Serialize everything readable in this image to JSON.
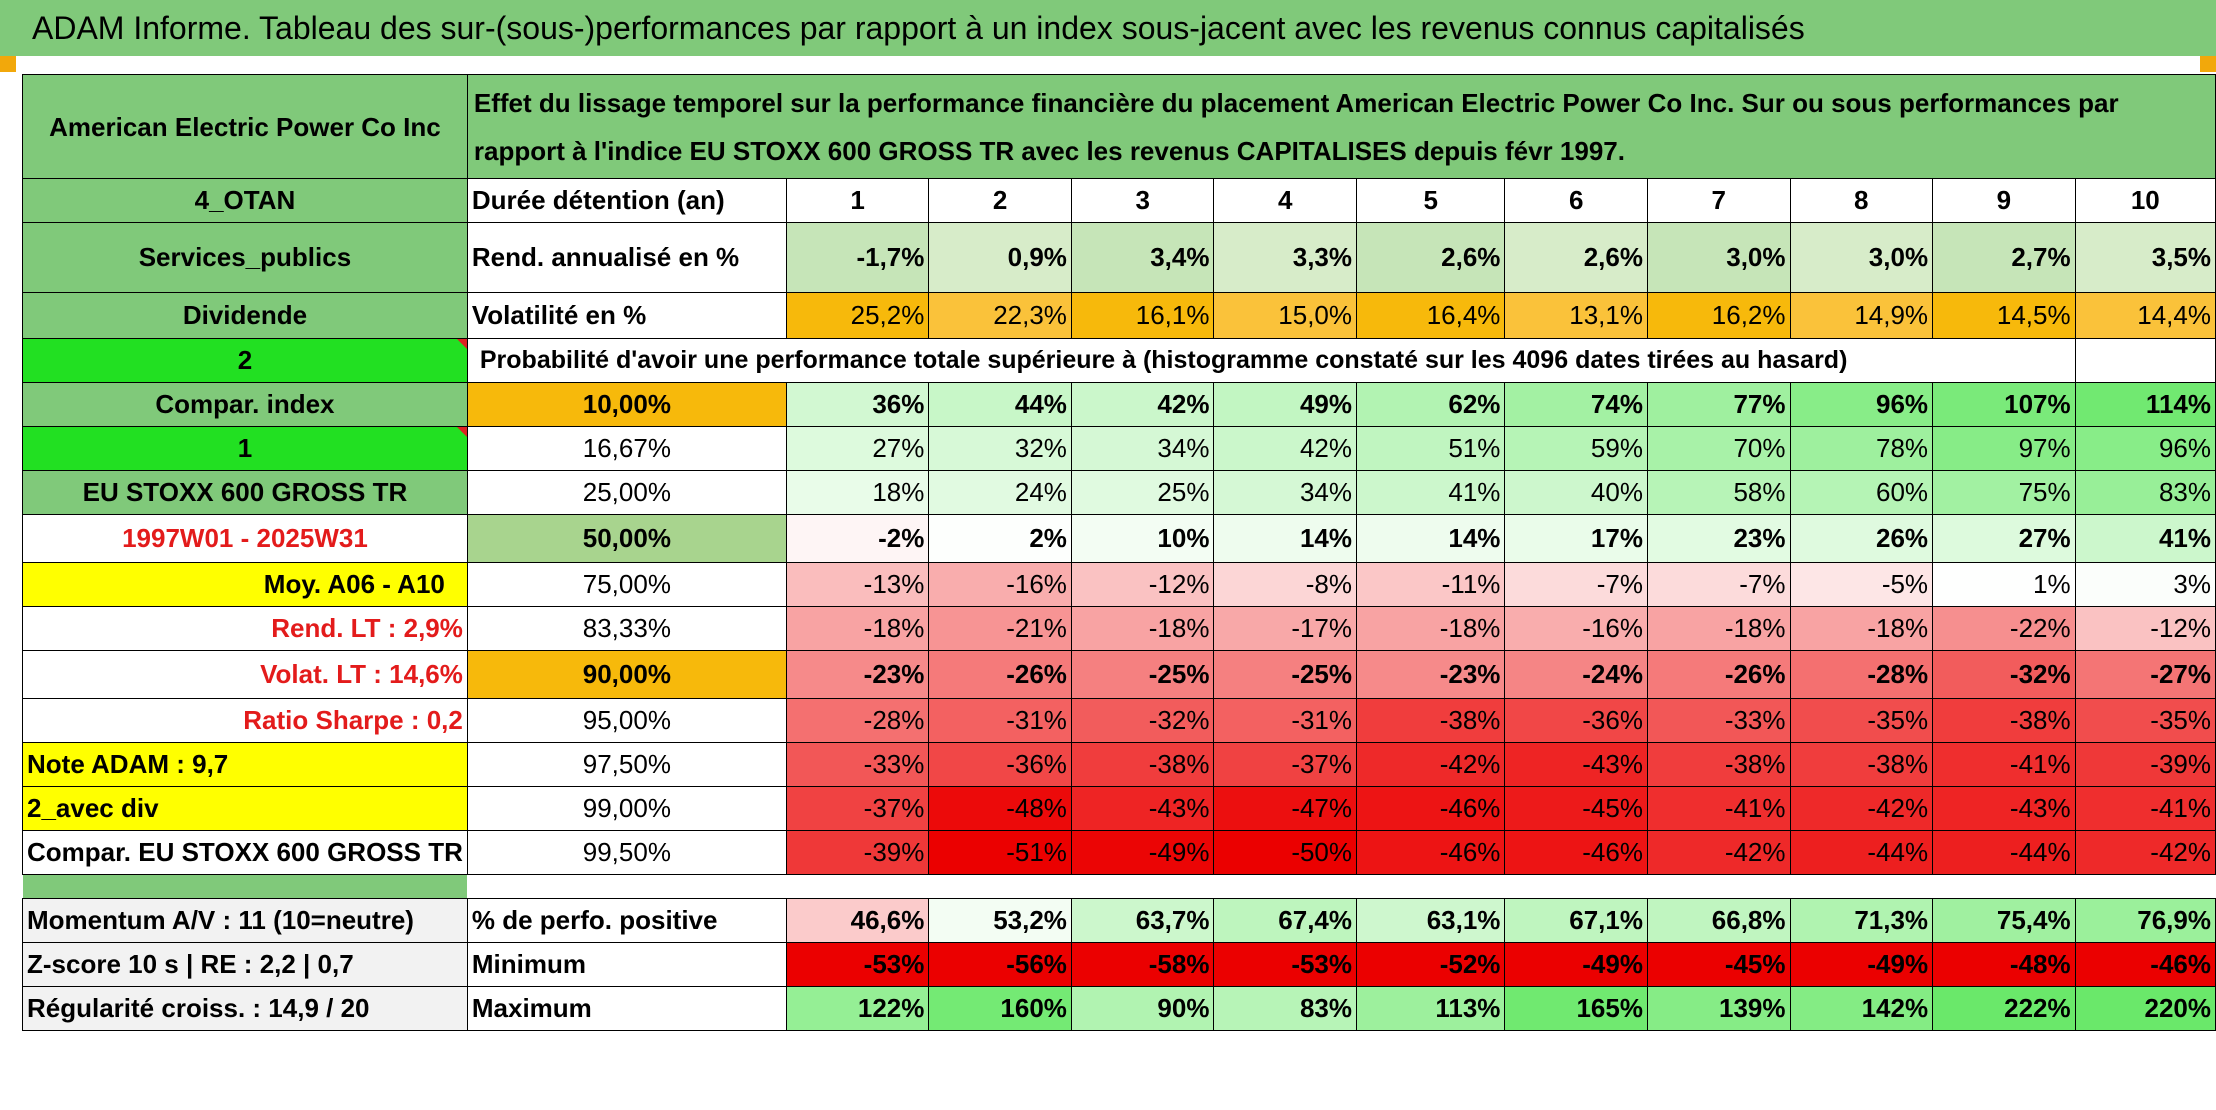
{
  "title": "ADAM Informe. Tableau des sur-(sous-)performances par rapport à un index sous-jacent avec les revenus connus capitalisés",
  "header": {
    "company": "American Electric Power Co Inc",
    "description": "Effet du lissage temporel sur la performance financière du placement American Electric Power Co Inc. Sur ou sous performances par rapport à l'indice EU STOXX 600 GROSS TR avec les revenus CAPITALISES depuis févr 1997."
  },
  "left_labels": {
    "otan": "4_OTAN",
    "sector": "Services_publics",
    "dividende": "Dividende",
    "two": "2",
    "compar_index": "Compar. index",
    "one": "1",
    "index_name": "EU STOXX 600 GROSS TR",
    "period": "1997W01 - 2025W31",
    "moy": "Moy. A06 - A10",
    "rend_lt": "Rend. LT :   2,9%",
    "volat_lt": "Volat. LT :   14,6%",
    "sharpe": "Ratio Sharpe :   0,2",
    "note": "Note ADAM : 9,7",
    "avec_div": "2_avec div",
    "compar_full": "Compar. EU STOXX 600 GROSS TR",
    "momentum": "Momentum A/V : 11 (10=neutre)",
    "zscore": "Z-score 10 s | RE : 2,2 | 0,7",
    "regularite": "Régularité croiss. : 14,9 / 20"
  },
  "stats": {
    "duree_label": "Durée détention (an)",
    "years": [
      "1",
      "2",
      "3",
      "4",
      "5",
      "6",
      "7",
      "8",
      "9",
      "10"
    ],
    "rend_label": "Rend. annualisé en %",
    "rend": [
      "-1,7%",
      "0,9%",
      "3,4%",
      "3,3%",
      "2,6%",
      "2,6%",
      "3,0%",
      "3,0%",
      "2,7%",
      "3,5%"
    ],
    "vol_label": "Volatilité en %",
    "vol": [
      "25,2%",
      "22,3%",
      "16,1%",
      "15,0%",
      "16,4%",
      "13,1%",
      "16,2%",
      "14,9%",
      "14,5%",
      "14,4%"
    ],
    "prob_label": "Probabilité d'avoir une performance totale supérieure à (histogramme constaté sur les 4096 dates tirées au hasard)"
  },
  "quantiles": [
    {
      "p": "10,00%",
      "v": [
        "36%",
        "44%",
        "42%",
        "49%",
        "62%",
        "74%",
        "77%",
        "96%",
        "107%",
        "114%"
      ]
    },
    {
      "p": "16,67%",
      "v": [
        "27%",
        "32%",
        "34%",
        "42%",
        "51%",
        "59%",
        "70%",
        "78%",
        "97%",
        "96%"
      ]
    },
    {
      "p": "25,00%",
      "v": [
        "18%",
        "24%",
        "25%",
        "34%",
        "41%",
        "40%",
        "58%",
        "60%",
        "75%",
        "83%"
      ]
    },
    {
      "p": "50,00%",
      "v": [
        "-2%",
        "2%",
        "10%",
        "14%",
        "14%",
        "17%",
        "23%",
        "26%",
        "27%",
        "41%"
      ]
    },
    {
      "p": "75,00%",
      "v": [
        "-13%",
        "-16%",
        "-12%",
        "-8%",
        "-11%",
        "-7%",
        "-7%",
        "-5%",
        "1%",
        "3%"
      ]
    },
    {
      "p": "83,33%",
      "v": [
        "-18%",
        "-21%",
        "-18%",
        "-17%",
        "-18%",
        "-16%",
        "-18%",
        "-18%",
        "-22%",
        "-12%"
      ]
    },
    {
      "p": "90,00%",
      "v": [
        "-23%",
        "-26%",
        "-25%",
        "-25%",
        "-23%",
        "-24%",
        "-26%",
        "-28%",
        "-32%",
        "-27%"
      ]
    },
    {
      "p": "95,00%",
      "v": [
        "-28%",
        "-31%",
        "-32%",
        "-31%",
        "-38%",
        "-36%",
        "-33%",
        "-35%",
        "-38%",
        "-35%"
      ]
    },
    {
      "p": "97,50%",
      "v": [
        "-33%",
        "-36%",
        "-38%",
        "-37%",
        "-42%",
        "-43%",
        "-38%",
        "-38%",
        "-41%",
        "-39%"
      ]
    },
    {
      "p": "99,00%",
      "v": [
        "-37%",
        "-48%",
        "-43%",
        "-47%",
        "-46%",
        "-45%",
        "-41%",
        "-42%",
        "-43%",
        "-41%"
      ]
    },
    {
      "p": "99,50%",
      "v": [
        "-39%",
        "-51%",
        "-49%",
        "-50%",
        "-46%",
        "-46%",
        "-42%",
        "-44%",
        "-44%",
        "-42%"
      ]
    }
  ],
  "bottom": {
    "pos_label": "% de perfo. positive",
    "pos": [
      "46,6%",
      "53,2%",
      "63,7%",
      "67,4%",
      "63,1%",
      "67,1%",
      "66,8%",
      "71,3%",
      "75,4%",
      "76,9%"
    ],
    "min_label": "Minimum",
    "min": [
      "-53%",
      "-56%",
      "-58%",
      "-53%",
      "-52%",
      "-49%",
      "-45%",
      "-49%",
      "-48%",
      "-46%"
    ],
    "max_label": "Maximum",
    "max": [
      "122%",
      "160%",
      "90%",
      "83%",
      "113%",
      "165%",
      "139%",
      "142%",
      "222%",
      "220%"
    ]
  },
  "colors": {
    "title_green": "#80c97a",
    "orange": "#f7b90b",
    "yellow": "#ffff00",
    "bright_green": "#22e022",
    "rend_green": "#c6e5b8"
  }
}
